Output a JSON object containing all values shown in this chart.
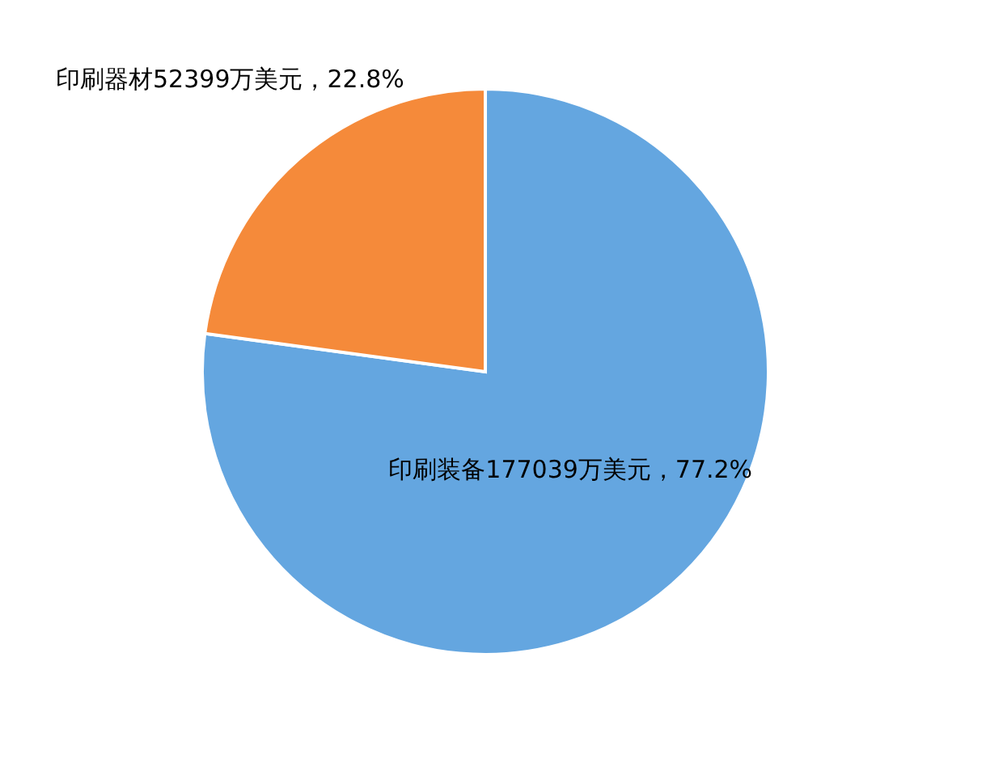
{
  "chart_data": {
    "type": "pie",
    "categories": [
      "印刷装备",
      "印刷器材"
    ],
    "values": [
      177039,
      52399
    ],
    "colors": [
      "#64a6e0",
      "#f58a3a"
    ],
    "value_labels": [
      "177039万美元，77.2%",
      "52399万美元，22.8%"
    ]
  }
}
